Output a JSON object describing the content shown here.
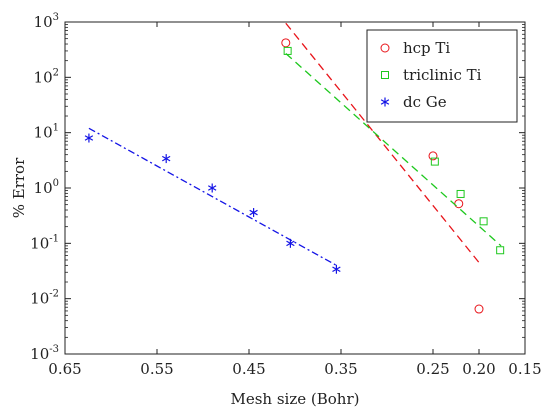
{
  "chart_data": {
    "type": "scatter",
    "title": "",
    "xlabel": "Mesh size (Bohr)",
    "ylabel": "% Error",
    "x_axis_reversed": true,
    "xlim": [
      0.65,
      0.15
    ],
    "ylim": [
      0.001,
      1000
    ],
    "y_scale": "log",
    "grid": false,
    "legend_position": "top-right",
    "x_ticks": [
      "0.65",
      "0.55",
      "0.45",
      "0.35",
      "0.25",
      "0.20",
      "0.15"
    ],
    "y_ticks": [
      {
        "base": "10",
        "exp": "3",
        "value": 1000
      },
      {
        "base": "10",
        "exp": "2",
        "value": 100
      },
      {
        "base": "10",
        "exp": "1",
        "value": 10
      },
      {
        "base": "10",
        "exp": "0",
        "value": 1
      },
      {
        "base": "10",
        "exp": "-1",
        "value": 0.1
      },
      {
        "base": "10",
        "exp": "-2",
        "value": 0.01
      },
      {
        "base": "10",
        "exp": "-3",
        "value": 0.001
      }
    ],
    "series": [
      {
        "name": "hcp Ti",
        "marker": "circle",
        "color": "#e8141a",
        "line_style": "dashed",
        "x": [
          0.41,
          0.3,
          0.25,
          0.222,
          0.2
        ],
        "y": [
          420,
          25,
          3.8,
          0.52,
          0.0065
        ],
        "fit_x": [
          0.41,
          0.2
        ],
        "fit_y": [
          950,
          0.045
        ]
      },
      {
        "name": "triclinic Ti",
        "marker": "square",
        "color": "#1ec81e",
        "line_style": "dashed",
        "x": [
          0.408,
          0.297,
          0.248,
          0.22,
          0.195,
          0.177
        ],
        "y": [
          300,
          20,
          3.0,
          0.78,
          0.25,
          0.075
        ],
        "fit_x": [
          0.41,
          0.176
        ],
        "fit_y": [
          270,
          0.09
        ]
      },
      {
        "name": "dc Ge",
        "marker": "asterisk",
        "color": "#1414e6",
        "line_style": "dashdot",
        "x": [
          0.624,
          0.54,
          0.49,
          0.445,
          0.405,
          0.355
        ],
        "y": [
          8.0,
          3.4,
          1.0,
          0.36,
          0.1,
          0.034
        ],
        "fit_x": [
          0.624,
          0.355
        ],
        "fit_y": [
          12,
          0.04
        ]
      }
    ]
  }
}
